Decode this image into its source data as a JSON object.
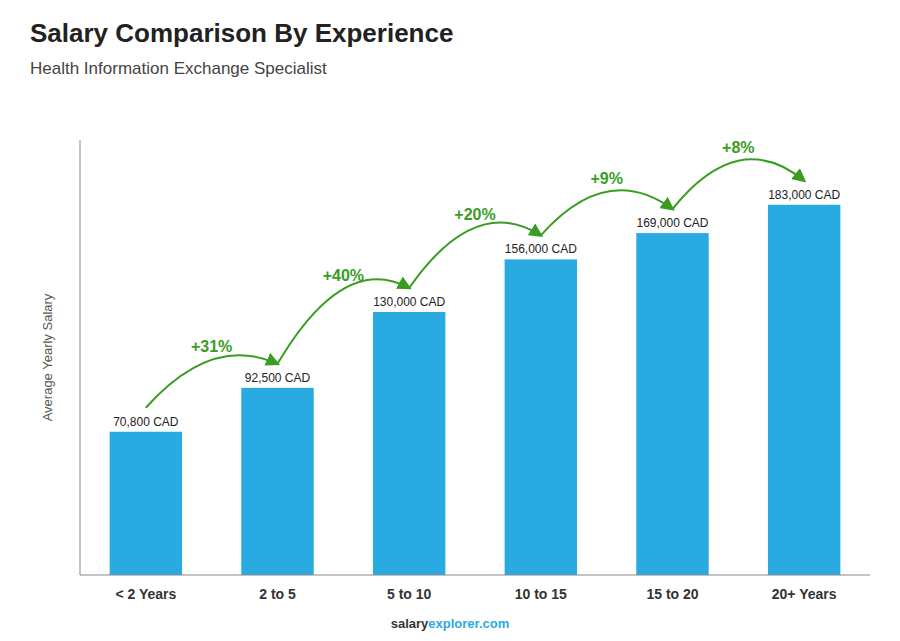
{
  "chart_data": {
    "type": "bar",
    "title": "Salary Comparison By Experience",
    "subtitle": "Health Information Exchange Specialist",
    "categories": [
      "< 2 Years",
      "2 to 5",
      "5 to 10",
      "10 to 15",
      "15 to 20",
      "20+ Years"
    ],
    "values": [
      70800,
      92500,
      130000,
      156000,
      169000,
      183000
    ],
    "value_labels": [
      "70,800 CAD",
      "92,500 CAD",
      "130,000 CAD",
      "156,000 CAD",
      "169,000 CAD",
      "183,000 CAD"
    ],
    "data_labels": true,
    "annotations": [
      "+31%",
      "+40%",
      "+20%",
      "+9%",
      "+8%"
    ],
    "footer": [
      "salary",
      "explorer.com"
    ],
    "ylabel": "Average Yearly Salary",
    "color": "#29ABE2",
    "ylim": [
      0,
      215000
    ],
    "tick_labels": "x",
    "grid": false
  }
}
